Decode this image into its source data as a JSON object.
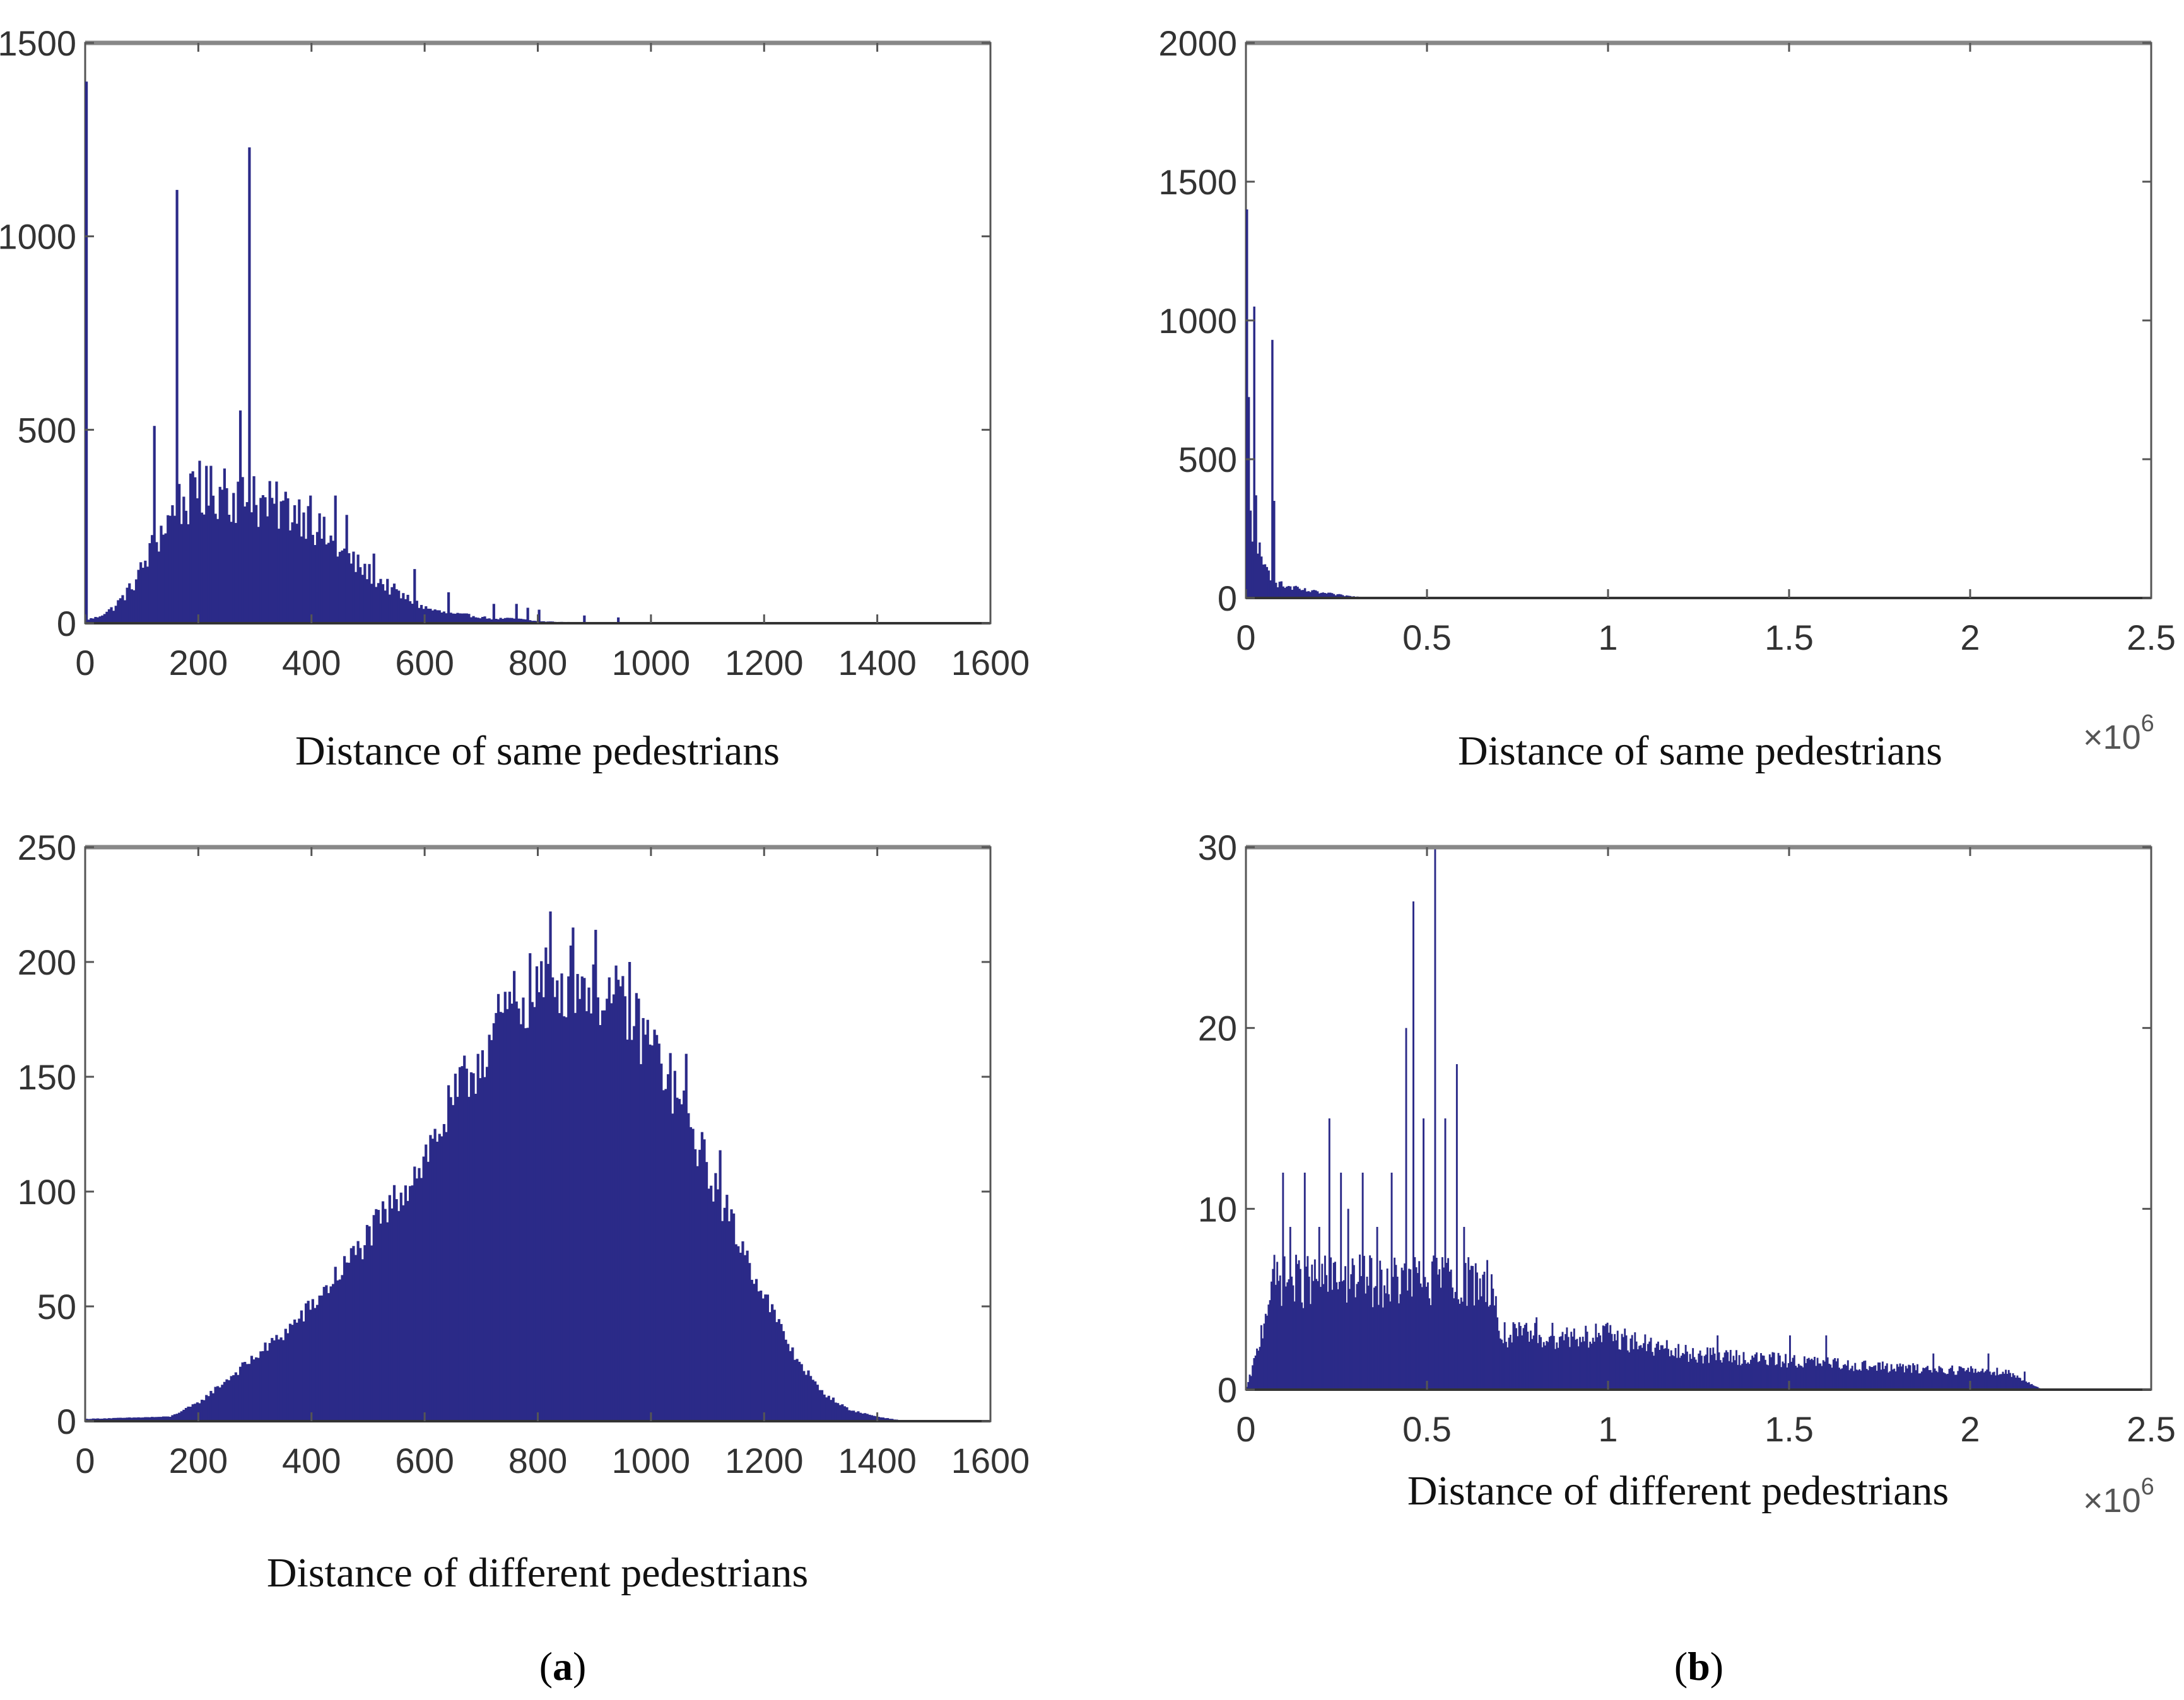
{
  "colors": {
    "bar": "#2b2a88",
    "axis": "#555555",
    "frame_top": "#888888"
  },
  "captions": {
    "a": {
      "open": "(",
      "letter": "a",
      "close": ")"
    },
    "b": {
      "open": "(",
      "letter": "b",
      "close": ")"
    }
  },
  "chart_data": [
    {
      "id": "a-top",
      "type": "bar",
      "title": "",
      "xlabel": "Distance of same pedestrians",
      "ylabel": "",
      "xlim": [
        0,
        1600
      ],
      "ylim": [
        0,
        1500
      ],
      "xticks": [
        0,
        200,
        400,
        600,
        800,
        1000,
        1200,
        1400,
        1600
      ],
      "xtick_labels": [
        "0",
        "200",
        "400",
        "600",
        "800",
        "1000",
        "1200",
        "1400",
        "1600"
      ],
      "yticks": [
        0,
        500,
        1000,
        1500
      ],
      "ytick_labels": [
        "0",
        "500",
        "1000",
        "1500"
      ],
      "multiplier": null,
      "bin_width": 4,
      "envelope": [
        [
          0,
          1400
        ],
        [
          4,
          10
        ],
        [
          20,
          15
        ],
        [
          50,
          40
        ],
        [
          80,
          90
        ],
        [
          100,
          140
        ],
        [
          120,
          200
        ],
        [
          140,
          250
        ],
        [
          160,
          300
        ],
        [
          200,
          330
        ],
        [
          230,
          340
        ],
        [
          260,
          330
        ],
        [
          300,
          310
        ],
        [
          340,
          300
        ],
        [
          380,
          290
        ],
        [
          400,
          260
        ],
        [
          440,
          200
        ],
        [
          480,
          150
        ],
        [
          520,
          110
        ],
        [
          560,
          70
        ],
        [
          600,
          40
        ],
        [
          640,
          25
        ],
        [
          680,
          20
        ],
        [
          720,
          12
        ],
        [
          760,
          12
        ],
        [
          800,
          5
        ],
        [
          850,
          3
        ],
        [
          900,
          2
        ],
        [
          950,
          1
        ],
        [
          1000,
          0
        ],
        [
          1600,
          0
        ]
      ],
      "noise": 0.22,
      "spikes": [
        [
          0,
          1400
        ],
        [
          120,
          510
        ],
        [
          160,
          1120
        ],
        [
          164,
          360
        ],
        [
          200,
          420
        ],
        [
          244,
          400
        ],
        [
          272,
          550
        ],
        [
          288,
          1230
        ],
        [
          296,
          380
        ],
        [
          396,
          330
        ],
        [
          440,
          330
        ],
        [
          460,
          280
        ],
        [
          510,
          180
        ],
        [
          580,
          140
        ],
        [
          640,
          80
        ],
        [
          720,
          50
        ],
        [
          760,
          50
        ],
        [
          780,
          40
        ],
        [
          800,
          35
        ],
        [
          880,
          20
        ],
        [
          940,
          15
        ]
      ]
    },
    {
      "id": "a-bottom",
      "type": "bar",
      "title": "",
      "xlabel": "Distance of different pedestrians",
      "ylabel": "",
      "xlim": [
        0,
        1600
      ],
      "ylim": [
        0,
        250
      ],
      "xticks": [
        0,
        200,
        400,
        600,
        800,
        1000,
        1200,
        1400,
        1600
      ],
      "xtick_labels": [
        "0",
        "200",
        "400",
        "600",
        "800",
        "1000",
        "1200",
        "1400",
        "1600"
      ],
      "yticks": [
        0,
        50,
        100,
        150,
        200,
        250
      ],
      "ytick_labels": [
        "0",
        "50",
        "100",
        "150",
        "200",
        "250"
      ],
      "multiplier": null,
      "bin_width": 4,
      "envelope": [
        [
          0,
          1
        ],
        [
          150,
          2
        ],
        [
          200,
          8
        ],
        [
          250,
          18
        ],
        [
          300,
          28
        ],
        [
          350,
          38
        ],
        [
          400,
          50
        ],
        [
          450,
          65
        ],
        [
          500,
          80
        ],
        [
          550,
          97
        ],
        [
          600,
          115
        ],
        [
          650,
          138
        ],
        [
          700,
          160
        ],
        [
          750,
          180
        ],
        [
          800,
          190
        ],
        [
          850,
          192
        ],
        [
          900,
          190
        ],
        [
          950,
          180
        ],
        [
          1000,
          165
        ],
        [
          1050,
          140
        ],
        [
          1100,
          110
        ],
        [
          1150,
          82
        ],
        [
          1200,
          55
        ],
        [
          1250,
          30
        ],
        [
          1300,
          13
        ],
        [
          1350,
          5
        ],
        [
          1400,
          2
        ],
        [
          1450,
          0
        ],
        [
          1600,
          0
        ]
      ],
      "noise": 0.09,
      "spikes": [
        [
          820,
          222
        ],
        [
          860,
          215
        ],
        [
          900,
          214
        ],
        [
          960,
          200
        ],
        [
          1060,
          160
        ],
        [
          1120,
          118
        ]
      ]
    },
    {
      "id": "b-top",
      "type": "bar",
      "title": "",
      "xlabel": "Distance of same pedestrians",
      "ylabel": "",
      "xlim": [
        0,
        2.5
      ],
      "ylim": [
        0,
        2000
      ],
      "xticks": [
        0,
        0.5,
        1,
        1.5,
        2,
        2.5
      ],
      "xtick_labels": [
        "0",
        "0.5",
        "1",
        "1.5",
        "2",
        "2.5"
      ],
      "yticks": [
        0,
        500,
        1000,
        1500,
        2000
      ],
      "ytick_labels": [
        "0",
        "500",
        "1000",
        "1500",
        "2000"
      ],
      "multiplier": {
        "base": "×10",
        "exponent": "6"
      },
      "bin_width": 0.005,
      "envelope": [
        [
          0,
          1400
        ],
        [
          0.01,
          350
        ],
        [
          0.02,
          150
        ],
        [
          0.04,
          120
        ],
        [
          0.06,
          100
        ],
        [
          0.08,
          60
        ],
        [
          0.1,
          45
        ],
        [
          0.15,
          30
        ],
        [
          0.2,
          20
        ],
        [
          0.25,
          12
        ],
        [
          0.3,
          5
        ],
        [
          0.35,
          3
        ],
        [
          0.4,
          2
        ],
        [
          0.5,
          0
        ],
        [
          2.5,
          0
        ]
      ],
      "noise": 0.3,
      "spikes": [
        [
          0.0,
          1400
        ],
        [
          0.02,
          1050
        ],
        [
          0.025,
          370
        ],
        [
          0.035,
          200
        ],
        [
          0.07,
          930
        ],
        [
          0.075,
          350
        ]
      ]
    },
    {
      "id": "b-bottom",
      "type": "bar",
      "title": "",
      "xlabel": "Distance of different pedestrians",
      "ylabel": "",
      "xlim": [
        0,
        2.5
      ],
      "ylim": [
        0,
        30
      ],
      "xticks": [
        0,
        0.5,
        1,
        1.5,
        2,
        2.5
      ],
      "xtick_labels": [
        "0",
        "0.5",
        "1",
        "1.5",
        "2",
        "2.5"
      ],
      "yticks": [
        0,
        10,
        20,
        30
      ],
      "ytick_labels": [
        "0",
        "10",
        "20",
        "30"
      ],
      "multiplier": {
        "base": "×10",
        "exponent": "6"
      },
      "bin_width": 0.004,
      "envelope": [
        [
          0,
          0
        ],
        [
          0.03,
          2
        ],
        [
          0.05,
          4
        ],
        [
          0.07,
          6
        ],
        [
          0.4,
          6
        ],
        [
          0.68,
          6
        ],
        [
          0.7,
          3
        ],
        [
          1.0,
          3
        ],
        [
          1.2,
          2
        ],
        [
          1.8,
          1.2
        ],
        [
          2.1,
          1
        ],
        [
          2.2,
          0
        ],
        [
          2.5,
          0
        ]
      ],
      "noise": 0.25,
      "spikes": [
        [
          0.1,
          12
        ],
        [
          0.12,
          9
        ],
        [
          0.16,
          12
        ],
        [
          0.2,
          9
        ],
        [
          0.23,
          15
        ],
        [
          0.26,
          12
        ],
        [
          0.28,
          10
        ],
        [
          0.32,
          12
        ],
        [
          0.36,
          9
        ],
        [
          0.4,
          12
        ],
        [
          0.44,
          20
        ],
        [
          0.46,
          27
        ],
        [
          0.49,
          15
        ],
        [
          0.52,
          30
        ],
        [
          0.55,
          15
        ],
        [
          0.58,
          18
        ],
        [
          0.6,
          9
        ],
        [
          0.8,
          4
        ],
        [
          1.05,
          3
        ],
        [
          1.3,
          3
        ],
        [
          1.5,
          3
        ],
        [
          1.6,
          3
        ],
        [
          1.9,
          2
        ],
        [
          2.05,
          2
        ],
        [
          2.15,
          1
        ]
      ]
    }
  ]
}
